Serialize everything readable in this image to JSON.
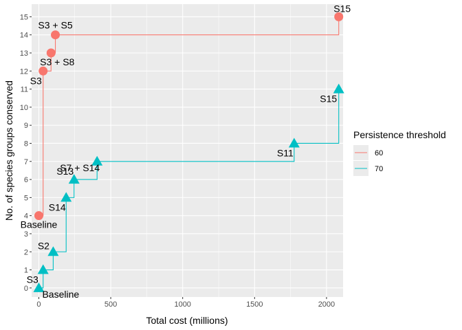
{
  "chart_data": {
    "type": "line",
    "step": true,
    "xlabel": "Total cost (millions)",
    "ylabel": "No. of species groups conserved",
    "xlim": [
      -50,
      2115
    ],
    "ylim": [
      -0.5,
      15.7
    ],
    "x_ticks": [
      0,
      500,
      1000,
      1500,
      2000
    ],
    "y_ticks": [
      0,
      1,
      2,
      3,
      4,
      5,
      6,
      7,
      8,
      9,
      10,
      11,
      12,
      13,
      14,
      15
    ],
    "grid": true,
    "legend": {
      "title": "Persistence threshold",
      "position": "right"
    },
    "series": [
      {
        "name": "60",
        "color": "#F8766D",
        "marker": "circle",
        "points": [
          {
            "x": 0,
            "y": 4,
            "label": "Baseline"
          },
          {
            "x": 30,
            "y": 12,
            "label": "S3"
          },
          {
            "x": 85,
            "y": 13,
            "label": "S3 + S8"
          },
          {
            "x": 115,
            "y": 14,
            "label": "S3 + S5"
          },
          {
            "x": 2085,
            "y": 15,
            "label": "S15"
          }
        ]
      },
      {
        "name": "70",
        "color": "#00BFC4",
        "marker": "triangle",
        "points": [
          {
            "x": 0,
            "y": 0,
            "label": "Baseline"
          },
          {
            "x": 30,
            "y": 1,
            "label": "S3"
          },
          {
            "x": 100,
            "y": 2,
            "label": "S2"
          },
          {
            "x": 190,
            "y": 5,
            "label": "S14"
          },
          {
            "x": 245,
            "y": 6,
            "label": "S13"
          },
          {
            "x": 405,
            "y": 7,
            "label": "S7 + S14"
          },
          {
            "x": 1775,
            "y": 8,
            "label": "S11"
          },
          {
            "x": 2085,
            "y": 11,
            "label": "S15"
          }
        ]
      }
    ]
  }
}
